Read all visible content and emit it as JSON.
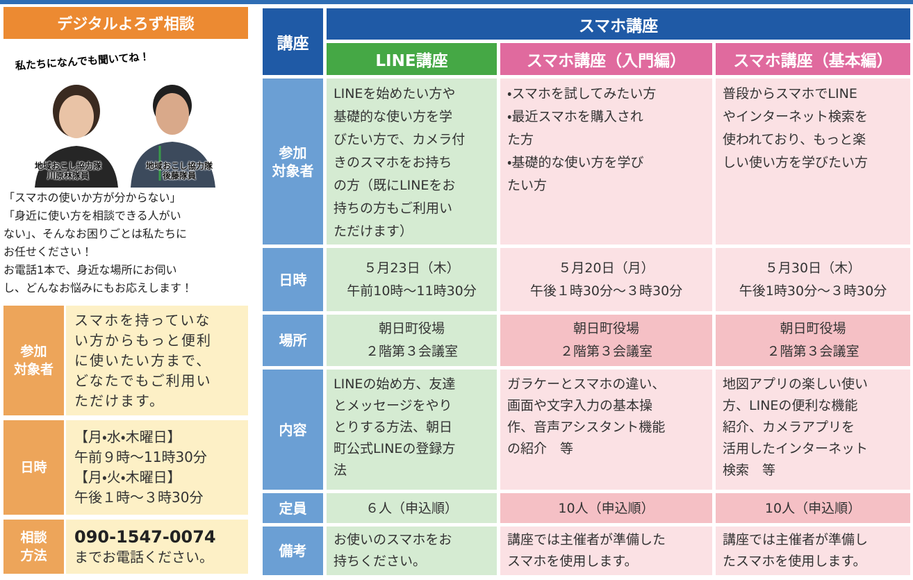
{
  "left": {
    "title": "デジタルよろず相談",
    "tagline": "私たちになんでも聞いてね！",
    "staff": [
      {
        "role": "地域おこし協力隊",
        "name": "川原林隊員"
      },
      {
        "role": "地域おこし協力隊",
        "name": "後藤隊員"
      }
    ],
    "message": [
      "「スマホの使いか方が分からない」",
      "「身近に使い方を相談できる人がい",
      "ない」、そんなお困りごとは私たちに",
      "お任せください！",
      "お電話1本で、身近な場所にお伺い",
      "し、どんなお悩みにもお応えします！"
    ],
    "info": [
      {
        "label": [
          "参加",
          "対象者"
        ],
        "text": [
          "スマホを持っていな",
          "い方からもっと便利",
          "に使いたい方まで、",
          "どなたでもご利用い",
          "ただけます。"
        ]
      },
      {
        "label": [
          "日時"
        ],
        "text": [
          "【月・水・木曜日】",
          "午前９時〜11時30分",
          "【月・火・木曜日】",
          "午後１時〜３時30分"
        ]
      },
      {
        "label": [
          "相談",
          "方法"
        ],
        "phone": "090-1547-0074",
        "text": [
          "までお電話ください。"
        ]
      }
    ]
  },
  "table": {
    "corner": "講座",
    "group": "スマホ講座",
    "courses": [
      "LINE講座",
      "スマホ講座（入門編）",
      "スマホ講座（基本編）"
    ],
    "rows": [
      {
        "label": [
          "参加",
          "対象者"
        ],
        "cells": [
          [
            "LINEを始めたい方や",
            "基礎的な使い方を学",
            "びたい方で、カメラ付",
            "きのスマホをお持ち",
            "の方（既にLINEをお",
            "持ちの方もご利用い",
            "ただけます）"
          ],
          [
            "・スマホを試してみたい方",
            "・最近スマホを購入され",
            "た方",
            "・基礎的な使い方を学び",
            "たい方"
          ],
          [
            "普段からスマホでLINE",
            "やインターネット検索を",
            "使われており、もっと楽",
            "しい使い方を学びたい方"
          ]
        ]
      },
      {
        "label": [
          "日時"
        ],
        "cells": [
          [
            "５月23日（木）",
            "午前10時〜11時30分"
          ],
          [
            "５月20日（月）",
            "午後１時30分〜３時30分"
          ],
          [
            "５月30日（木）",
            "午後1時30分〜３時30分"
          ]
        ]
      },
      {
        "label": [
          "場所"
        ],
        "cells": [
          [
            "朝日町役場",
            "２階第３会議室"
          ],
          [
            "朝日町役場",
            "２階第３会議室"
          ],
          [
            "朝日町役場",
            "２階第３会議室"
          ]
        ]
      },
      {
        "label": [
          "内容"
        ],
        "cells": [
          [
            "LINEの始め方、友達",
            "とメッセージをやり",
            "とりする方法、朝日",
            "町公式LINEの登録方",
            "法"
          ],
          [
            "ガラケーとスマホの違い、",
            "画面や文字入力の基本操",
            "作、音声アシスタント機能",
            "の紹介　等"
          ],
          [
            "地図アプリの楽しい使い",
            "方、LINEの便利な機能",
            "紹介、カメラアプリを",
            "活用したインターネット",
            "検索　等"
          ]
        ]
      },
      {
        "label": [
          "定員"
        ],
        "cells": [
          [
            "６人（申込順）"
          ],
          [
            "10人（申込順）"
          ],
          [
            "10人（申込順）"
          ]
        ]
      },
      {
        "label": [
          "備考"
        ],
        "cells": [
          [
            "お使いのスマホをお",
            "持ちください。"
          ],
          [
            "講座では主催者が準備した",
            "スマホを使用します。"
          ],
          [
            "講座では主催者が準備し",
            "たスマホを使用します。"
          ]
        ]
      }
    ]
  }
}
